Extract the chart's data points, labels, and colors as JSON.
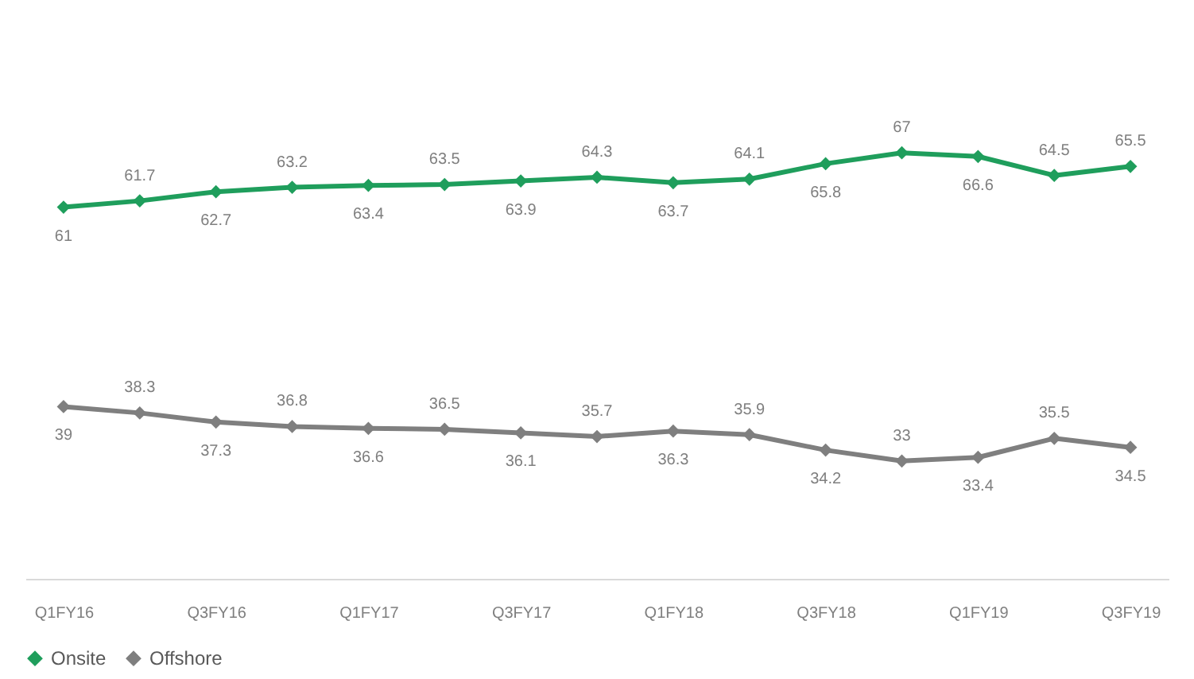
{
  "chart_data": {
    "type": "line",
    "categories": [
      "Q1FY16",
      null,
      "Q3FY16",
      null,
      "Q1FY17",
      null,
      "Q3FY17",
      null,
      "Q1FY18",
      null,
      "Q3FY18",
      null,
      "Q1FY19",
      null,
      "Q3FY19"
    ],
    "series": [
      {
        "name": "Onsite",
        "color": "#1f9e5c",
        "values": [
          61,
          61.7,
          62.7,
          63.2,
          63.4,
          63.5,
          63.9,
          64.3,
          63.7,
          64.1,
          65.8,
          67,
          66.6,
          64.5,
          65.5
        ]
      },
      {
        "name": "Offshore",
        "color": "#7f7f7f",
        "values": [
          39,
          38.3,
          37.3,
          36.8,
          36.6,
          36.5,
          36.1,
          35.7,
          36.3,
          35.9,
          34.2,
          33,
          33.4,
          35.5,
          34.5
        ]
      }
    ],
    "tick_labels": "x",
    "grid": false,
    "legend": "bottom",
    "marker": "diamond",
    "line_style": "solid",
    "data_labels": true
  }
}
